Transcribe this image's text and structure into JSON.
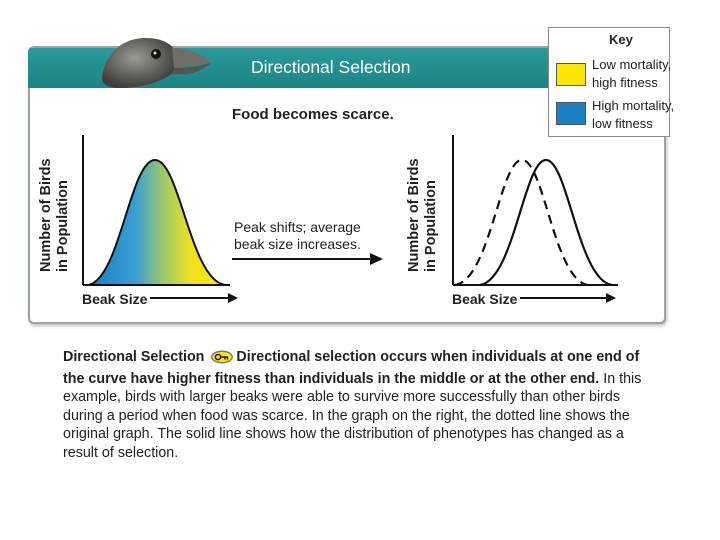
{
  "banner": {
    "title": "Directional Selection"
  },
  "subtitle": "Food becomes scarce.",
  "key": {
    "title": "Key",
    "items": [
      {
        "label_line1": "Low mortality,",
        "label_line2": "high fitness",
        "color": "#ffe600"
      },
      {
        "label_line1": "High mortality,",
        "label_line2": "low fitness",
        "color": "#1a7fc4"
      }
    ]
  },
  "left_graph": {
    "ylabel_line1": "Number of Birds",
    "ylabel_line2": "in Population",
    "xlabel": "Beak Size"
  },
  "right_graph": {
    "ylabel_line1": "Number of Birds",
    "ylabel_line2": "in Population",
    "xlabel": "Beak Size"
  },
  "annotation": {
    "line1": "Peak shifts; average",
    "line2": "beak size increases."
  },
  "caption": {
    "lead_bold": "Directional Selection",
    "bold_part1": "Directional selection occurs when individuals",
    "bold_part2": "at one end of the curve have higher fitness than individuals in the middle or",
    "bold_part3": "at the other end.",
    "body": "In this example, birds with larger beaks were able to survive more successfully than other birds during a period when food was scarce. In the graph on the right, the dotted line shows the original graph. The solid line shows how the distribution of phenotypes has changed as a result of selection."
  },
  "colors": {
    "banner": "#1c8585",
    "yellow": "#ffe600",
    "blue": "#1a7fc4"
  },
  "icons": {
    "bird": "bird-head-icon",
    "key_icon": "key-icon"
  }
}
